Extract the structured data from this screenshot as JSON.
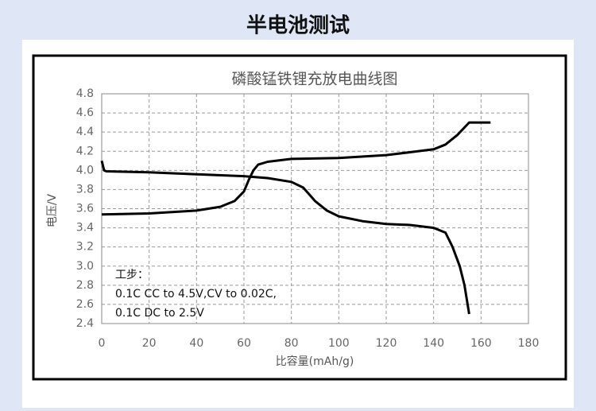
{
  "page_title": "半电池测试",
  "chart_data": {
    "type": "line",
    "title": "磷酸锰铁锂充放电曲线图",
    "xlabel": "比容量(mAh/g)",
    "ylabel": "电压/V",
    "annotations": [
      "工步：",
      "0.1C CC to 4.5V,CV to 0.02C,",
      "0.1C DC to 2.5V"
    ],
    "xlim": [
      0,
      180
    ],
    "xticks": [
      0,
      20,
      40,
      60,
      80,
      100,
      120,
      140,
      160,
      180
    ],
    "ylim": [
      2.4,
      4.8
    ],
    "yticks": [
      2.4,
      2.6,
      2.8,
      {
        "value": 3,
        "label": "3.0"
      },
      3.2,
      3.4,
      3.6,
      3.8,
      {
        "value": 4,
        "label": "4.0"
      },
      4.2,
      4.4,
      4.6,
      4.8
    ],
    "grid": true,
    "series": [
      {
        "color": "#000000",
        "x": [
          0,
          20,
          40,
          50,
          56,
          60,
          62,
          64,
          66,
          70,
          80,
          100,
          120,
          130,
          140,
          145,
          150,
          155,
          164
        ],
        "values": [
          3.54,
          3.55,
          3.58,
          3.62,
          3.68,
          3.78,
          3.9,
          4.0,
          4.06,
          4.09,
          4.12,
          4.13,
          4.16,
          4.19,
          4.22,
          4.27,
          4.37,
          4.5,
          4.5
        ]
      },
      {
        "color": "#000000",
        "x": [
          0,
          1,
          2,
          20,
          40,
          60,
          70,
          80,
          85,
          90,
          95,
          100,
          110,
          120,
          130,
          140,
          145,
          148,
          151,
          153,
          155
        ],
        "values": [
          4.1,
          4.0,
          3.99,
          3.98,
          3.96,
          3.94,
          3.92,
          3.88,
          3.82,
          3.68,
          3.58,
          3.52,
          3.47,
          3.44,
          3.43,
          3.4,
          3.35,
          3.2,
          3.0,
          2.8,
          2.5
        ]
      }
    ]
  }
}
